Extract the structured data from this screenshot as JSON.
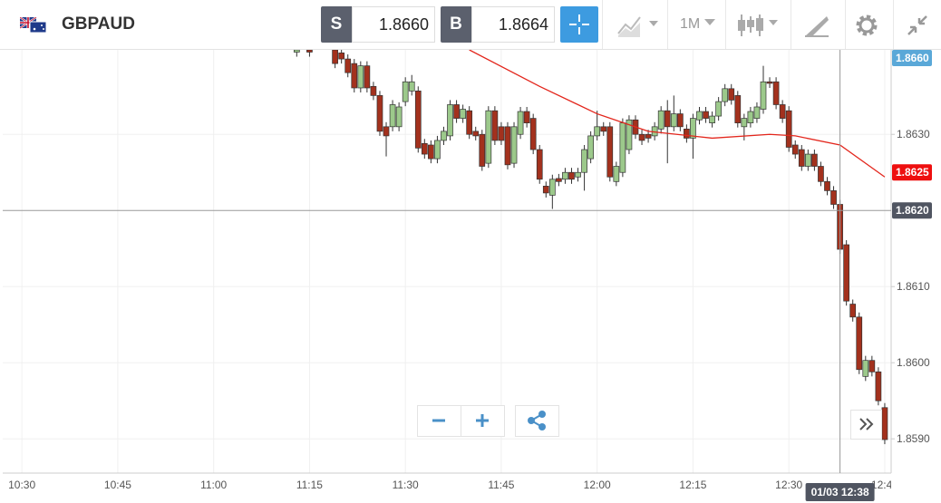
{
  "toolbar": {
    "symbol": "GBPAUD",
    "sell_label": "S",
    "sell_price": "1.8660",
    "buy_label": "B",
    "buy_price": "1.8664",
    "timeframe": "1M"
  },
  "chart_data": {
    "type": "candlestick",
    "x": [
      "11:13",
      "11:15",
      "11:19",
      "11:20",
      "11:21",
      "11:22",
      "11:23",
      "11:24",
      "11:25",
      "11:26",
      "11:27",
      "11:28",
      "11:29",
      "11:30",
      "11:31",
      "11:32",
      "11:33",
      "11:34",
      "11:35",
      "11:36",
      "11:37",
      "11:38",
      "11:39",
      "11:40",
      "11:41",
      "11:42",
      "11:43",
      "11:44",
      "11:45",
      "11:46",
      "11:47",
      "11:48",
      "11:49",
      "11:50",
      "11:51",
      "11:52",
      "11:53",
      "11:54",
      "11:55",
      "11:56",
      "11:57",
      "11:58",
      "11:59",
      "12:00",
      "12:01",
      "12:02",
      "12:03",
      "12:04",
      "12:05",
      "12:06",
      "12:07",
      "12:08",
      "12:09",
      "12:10",
      "12:11",
      "12:12",
      "12:13",
      "12:14",
      "12:15",
      "12:16",
      "12:17",
      "12:18",
      "12:19",
      "12:20",
      "12:21",
      "12:22",
      "12:23",
      "12:24",
      "12:25",
      "12:26",
      "12:27",
      "12:28",
      "12:29",
      "12:30",
      "12:31",
      "12:32",
      "12:33",
      "12:34",
      "12:35",
      "12:36",
      "12:37",
      "12:38",
      "12:39",
      "12:40",
      "12:41",
      "12:42",
      "12:43",
      "12:44",
      "12:45"
    ],
    "open": [
      1.86408,
      1.86411,
      1.86411,
      1.86407,
      1.86399,
      1.86393,
      1.86361,
      1.8639,
      1.86363,
      1.86351,
      1.8631,
      1.8631,
      1.8631,
      1.86343,
      1.86357,
      1.86357,
      1.86288,
      1.86286,
      1.86268,
      1.86292,
      1.86298,
      1.86339,
      1.86321,
      1.86331,
      1.86304,
      1.863,
      1.86262,
      1.86331,
      1.8631,
      1.8631,
      1.86262,
      1.863,
      1.8633,
      1.86321,
      1.8628,
      1.86232,
      1.8622,
      1.86242,
      1.86241,
      1.8625,
      1.86244,
      1.8625,
      1.86268,
      1.86298,
      1.8631,
      1.8631,
      1.86238,
      1.8625,
      1.8628,
      1.86319,
      1.863,
      1.863,
      1.86298,
      1.86307,
      1.86331,
      1.8631,
      1.86327,
      1.86307,
      1.86295,
      1.86319,
      1.8633,
      1.86315,
      1.86324,
      1.86343,
      1.8636,
      1.86351,
      1.8631,
      1.86315,
      1.86321,
      1.86333,
      1.86369,
      1.86369,
      1.86339,
      1.86331,
      1.86286,
      1.8628,
      1.86258,
      1.86274,
      1.86258,
      1.86238,
      1.86226,
      1.86208,
      1.86155,
      1.86077,
      1.8606,
      1.85982,
      1.86003,
      1.85988,
      1.85941
    ],
    "high": [
      1.86417,
      1.86414,
      1.86417,
      1.86413,
      1.86405,
      1.86399,
      1.86396,
      1.86396,
      1.86369,
      1.86357,
      1.86316,
      1.86345,
      1.86342,
      1.86375,
      1.86378,
      1.86363,
      1.86294,
      1.86292,
      1.86298,
      1.8631,
      1.86345,
      1.86345,
      1.86339,
      1.86337,
      1.8631,
      1.86306,
      1.86337,
      1.86337,
      1.86316,
      1.86316,
      1.86316,
      1.86336,
      1.86336,
      1.86327,
      1.86286,
      1.86238,
      1.86247,
      1.86248,
      1.86256,
      1.86256,
      1.86256,
      1.86286,
      1.86304,
      1.86331,
      1.86316,
      1.86316,
      1.86264,
      1.86321,
      1.86325,
      1.86325,
      1.86306,
      1.86306,
      1.86316,
      1.86337,
      1.86345,
      1.86351,
      1.86333,
      1.86313,
      1.86327,
      1.86336,
      1.86336,
      1.8633,
      1.86349,
      1.86366,
      1.86366,
      1.86357,
      1.86327,
      1.86336,
      1.86342,
      1.8639,
      1.86375,
      1.86375,
      1.86345,
      1.86337,
      1.86292,
      1.86286,
      1.8628,
      1.8628,
      1.86264,
      1.86244,
      1.86232,
      1.86214,
      1.86161,
      1.86083,
      1.86066,
      1.86009,
      1.86009,
      1.85994,
      1.85947
    ],
    "low": [
      1.86402,
      1.86402,
      1.86387,
      1.86393,
      1.86375,
      1.86355,
      1.86355,
      1.86355,
      1.86345,
      1.86298,
      1.86271,
      1.86304,
      1.86304,
      1.86337,
      1.86351,
      1.86276,
      1.86268,
      1.86262,
      1.86262,
      1.86286,
      1.86292,
      1.86315,
      1.86315,
      1.86294,
      1.86292,
      1.86252,
      1.86256,
      1.86286,
      1.86286,
      1.86254,
      1.86256,
      1.86294,
      1.86309,
      1.86274,
      1.86235,
      1.86217,
      1.86202,
      1.86232,
      1.86235,
      1.86235,
      1.86238,
      1.86226,
      1.86262,
      1.86292,
      1.86298,
      1.86238,
      1.86232,
      1.86244,
      1.86274,
      1.86294,
      1.86286,
      1.86289,
      1.86292,
      1.86301,
      1.86262,
      1.86304,
      1.86304,
      1.86289,
      1.86268,
      1.86313,
      1.86315,
      1.86309,
      1.86318,
      1.86337,
      1.86339,
      1.86309,
      1.86292,
      1.86309,
      1.86315,
      1.86327,
      1.86361,
      1.86333,
      1.86315,
      1.86277,
      1.86268,
      1.86252,
      1.86252,
      1.86252,
      1.86232,
      1.8622,
      1.86202,
      1.86143,
      1.86075,
      1.86054,
      1.85985,
      1.85976,
      1.85982,
      1.85944,
      1.85893
    ],
    "close": [
      1.86411,
      1.86408,
      1.86393,
      1.86399,
      1.86381,
      1.86361,
      1.8639,
      1.86361,
      1.86351,
      1.86304,
      1.86298,
      1.86339,
      1.86336,
      1.86369,
      1.86369,
      1.86282,
      1.86274,
      1.86268,
      1.86292,
      1.86304,
      1.86339,
      1.86321,
      1.86333,
      1.863,
      1.86298,
      1.86258,
      1.86331,
      1.86292,
      1.86292,
      1.8626,
      1.8631,
      1.8633,
      1.86315,
      1.8628,
      1.86241,
      1.86223,
      1.86241,
      1.86238,
      1.8625,
      1.86241,
      1.8625,
      1.8628,
      1.86298,
      1.8631,
      1.86304,
      1.86244,
      1.86258,
      1.86315,
      1.86319,
      1.863,
      1.86292,
      1.86295,
      1.8631,
      1.86331,
      1.8631,
      1.86327,
      1.8631,
      1.86295,
      1.86321,
      1.8633,
      1.86321,
      1.86324,
      1.86343,
      1.8636,
      1.86345,
      1.86315,
      1.86321,
      1.8633,
      1.86336,
      1.86369,
      1.86367,
      1.86339,
      1.86321,
      1.86283,
      1.86274,
      1.86258,
      1.86274,
      1.86258,
      1.86238,
      1.86226,
      1.86208,
      1.86149,
      1.86081,
      1.8606,
      1.85991,
      1.86003,
      1.85988,
      1.8595,
      1.85899
    ],
    "up_color": "#9cc98b",
    "down_color": "#a3311d",
    "ma": {
      "x": [
        "11:40",
        "11:51",
        "12:00",
        "12:08",
        "12:18",
        "12:27",
        "12:31",
        "12:38",
        "12:45"
      ],
      "values": [
        1.86411,
        1.86363,
        1.86327,
        1.86304,
        1.86295,
        1.863,
        1.86298,
        1.86286,
        1.86244
      ],
      "color": "#e3261c"
    },
    "xlim": [
      "10:27",
      "12:46"
    ],
    "xticks": [
      "10:30",
      "10:45",
      "11:00",
      "11:15",
      "11:30",
      "11:45",
      "12:00",
      "12:15",
      "12:30",
      "12:45"
    ],
    "ylim": [
      1.85855,
      1.86411
    ],
    "yticks": [
      {
        "value": 1.859,
        "label": "1.8590"
      },
      {
        "value": 1.86,
        "label": "1.8600"
      },
      {
        "value": 1.861,
        "label": "1.8610"
      },
      {
        "value": 1.863,
        "label": "1.8630"
      }
    ],
    "grid": true,
    "price_tags": [
      {
        "value": 1.866,
        "label": "1.8660",
        "color": "#5aa8d8"
      },
      {
        "value": 1.8625,
        "label": "1.8625",
        "color": "#ee0f0f"
      }
    ],
    "crosshair": {
      "x": "12:38",
      "x_label": "01/03 12:38",
      "y": {
        "value": 1.862,
        "label": "1.8620"
      }
    }
  }
}
